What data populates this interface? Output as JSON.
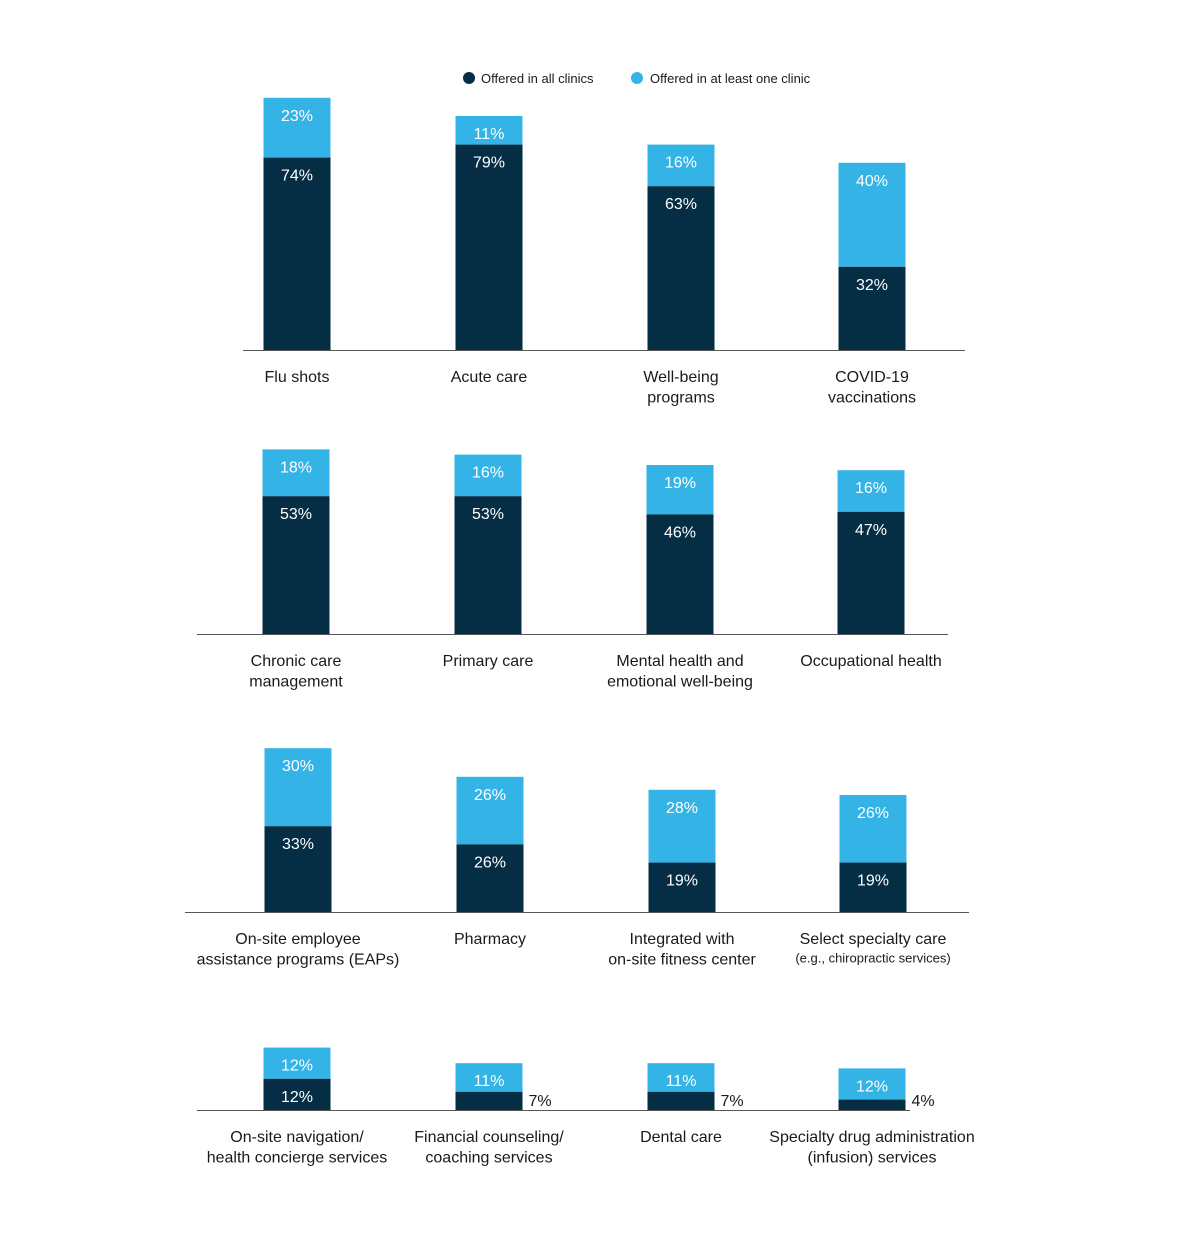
{
  "colors": {
    "all": "#052e45",
    "atLeastOne": "#34b4e6"
  },
  "legend": {
    "all_label": "Offered in all clinics",
    "one_label": "Offered in at least one clinic"
  },
  "chart_data": {
    "type": "bar",
    "stacked": true,
    "legend_position": "top-center",
    "grid": false,
    "series_names": [
      "Offered in all clinics",
      "Offered in at least one clinic"
    ],
    "panels": [
      {
        "categories": [
          {
            "lines": [
              "Flu shots"
            ],
            "all": 74,
            "one": 23
          },
          {
            "lines": [
              "Acute care"
            ],
            "all": 79,
            "one": 11
          },
          {
            "lines": [
              "Well-being",
              "programs"
            ],
            "all": 63,
            "one": 16
          },
          {
            "lines": [
              "COVID-19",
              "vaccinations"
            ],
            "all": 32,
            "one": 40
          }
        ]
      },
      {
        "categories": [
          {
            "lines": [
              "Chronic care",
              "management"
            ],
            "all": 53,
            "one": 18
          },
          {
            "lines": [
              "Primary care"
            ],
            "all": 53,
            "one": 16
          },
          {
            "lines": [
              "Mental health and",
              "emotional well-being"
            ],
            "all": 46,
            "one": 19
          },
          {
            "lines": [
              "Occupational health"
            ],
            "all": 47,
            "one": 16
          }
        ]
      },
      {
        "categories": [
          {
            "lines": [
              "On-site employee",
              "assistance programs (EAPs)"
            ],
            "all": 33,
            "one": 30
          },
          {
            "lines": [
              "Pharmacy"
            ],
            "all": 26,
            "one": 26
          },
          {
            "lines": [
              "Integrated with",
              "on-site fitness center"
            ],
            "all": 19,
            "one": 28
          },
          {
            "lines": [
              "Select specialty care"
            ],
            "sublines": [
              "(e.g., chiropractic services)"
            ],
            "all": 19,
            "one": 26
          }
        ]
      },
      {
        "categories": [
          {
            "lines": [
              "On-site navigation/",
              "health concierge services"
            ],
            "all": 12,
            "one": 12
          },
          {
            "lines": [
              "Financial counseling/",
              "coaching services"
            ],
            "all": 7,
            "one": 11
          },
          {
            "lines": [
              "Dental care"
            ],
            "all": 7,
            "one": 11
          },
          {
            "lines": [
              "Specialty drug administration",
              "(infusion) services"
            ],
            "all": 4,
            "one": 12
          }
        ]
      }
    ]
  }
}
